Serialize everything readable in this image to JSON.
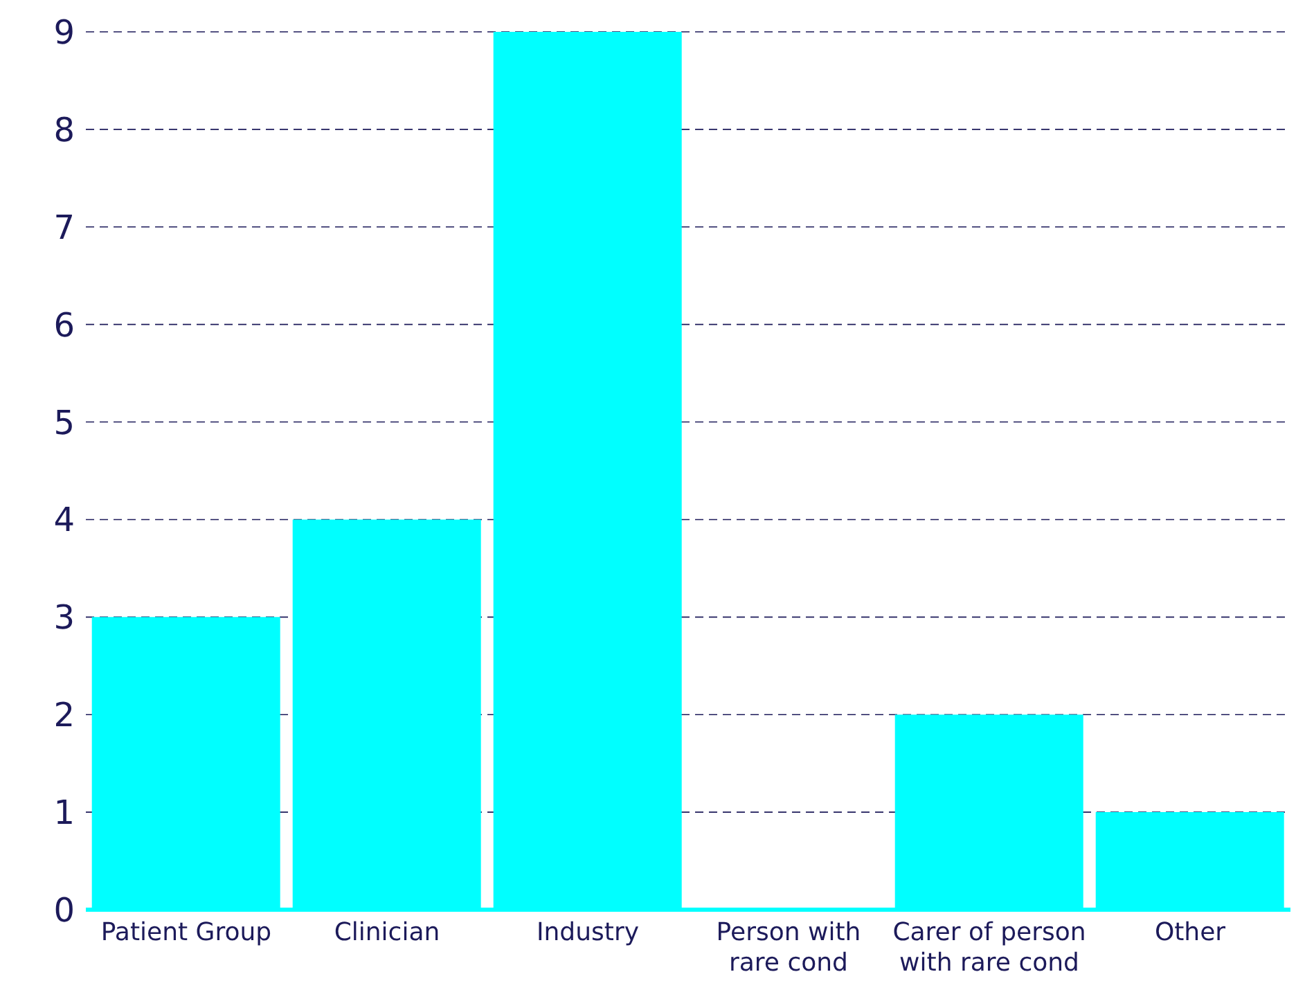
{
  "chart_data": {
    "type": "bar",
    "categories": [
      "Patient Group",
      "Clinician",
      "Industry",
      "Person with rare cond",
      "Carer of person with rare cond",
      "Other"
    ],
    "values": [
      3,
      4,
      9,
      0,
      2,
      1
    ],
    "color": "#00ffff",
    "ylim": [
      0,
      9
    ],
    "yticks": [
      0,
      1,
      2,
      3,
      4,
      5,
      6,
      7,
      8,
      9
    ],
    "grid": "y"
  }
}
